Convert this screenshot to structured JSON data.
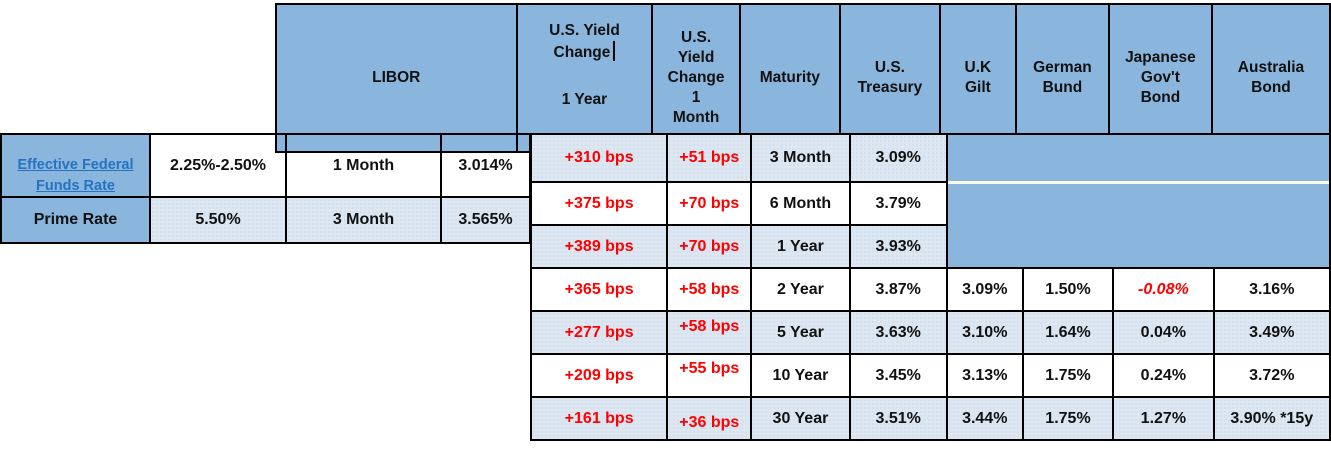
{
  "colors": {
    "header_blue": "#8AB6DE",
    "row_light_blue": "#DCE7F2",
    "border_black": "#000000",
    "red_text": "#FF0000",
    "link_blue": "#2573C1",
    "divider_pale_yellow": "#FCFCE4",
    "text_black": "#111111"
  },
  "left_table": {
    "rows": [
      {
        "label": "Effective Federal\nFunds Rate",
        "value": "2.25%-2.50%",
        "libor_term": "1 Month",
        "libor_rate": "3.014%"
      },
      {
        "label": "Prime Rate",
        "value": "5.50%",
        "libor_term": "3 Month",
        "libor_rate": "3.565%"
      }
    ]
  },
  "headers": {
    "libor": "LIBOR",
    "us_yield_change_1y_top": "U.S. Yield\nChange",
    "us_yield_change_1y_bottom": "1 Year",
    "us_yield_change_1m": "U.S.\nYield\nChange\n1\nMonth",
    "maturity": "Maturity",
    "us_treasury": "U.S.\nTreasury",
    "uk_gilt": "U.K\nGilt",
    "german_bund": "German\nBund",
    "japanese_govt_bond": "Japanese\nGov't\nBond",
    "australia_bond": "Australia\nBond"
  },
  "main_table": {
    "rows": [
      {
        "yield_change_1y": "+310 bps",
        "yield_change_1m": "+51 bps",
        "maturity": "3 Month",
        "us_treasury": "3.09%",
        "uk_gilt": "",
        "german_bund": "",
        "japanese_govt_bond": "",
        "australia_bond": ""
      },
      {
        "yield_change_1y": "+375 bps",
        "yield_change_1m": "+70 bps",
        "maturity": "6 Month",
        "us_treasury": "3.79%",
        "uk_gilt": "",
        "german_bund": "",
        "japanese_govt_bond": "",
        "australia_bond": ""
      },
      {
        "yield_change_1y": "+389 bps",
        "yield_change_1m": "+70 bps",
        "maturity": "1 Year",
        "us_treasury": "3.93%",
        "uk_gilt": "",
        "german_bund": "",
        "japanese_govt_bond": "",
        "australia_bond": ""
      },
      {
        "yield_change_1y": "+365 bps",
        "yield_change_1m": "+58 bps",
        "maturity": "2 Year",
        "us_treasury": "3.87%",
        "uk_gilt": "3.09%",
        "german_bund": "1.50%",
        "japanese_govt_bond": "-0.08%",
        "australia_bond": "3.16%"
      },
      {
        "yield_change_1y": "+277 bps",
        "yield_change_1m": "+58 bps",
        "maturity": "5 Year",
        "us_treasury": "3.63%",
        "uk_gilt": "3.10%",
        "german_bund": "1.64%",
        "japanese_govt_bond": "0.04%",
        "australia_bond": "3.49%"
      },
      {
        "yield_change_1y": "+209 bps",
        "yield_change_1m": "+55 bps",
        "maturity": "10 Year",
        "us_treasury": "3.45%",
        "uk_gilt": "3.13%",
        "german_bund": "1.75%",
        "japanese_govt_bond": "0.24%",
        "australia_bond": "3.72%"
      },
      {
        "yield_change_1y": "+161 bps",
        "yield_change_1m": "+36 bps",
        "maturity": "30 Year",
        "us_treasury": "3.51%",
        "uk_gilt": "3.44%",
        "german_bund": "1.75%",
        "japanese_govt_bond": "1.27%",
        "australia_bond": "3.90% *15y"
      }
    ]
  }
}
